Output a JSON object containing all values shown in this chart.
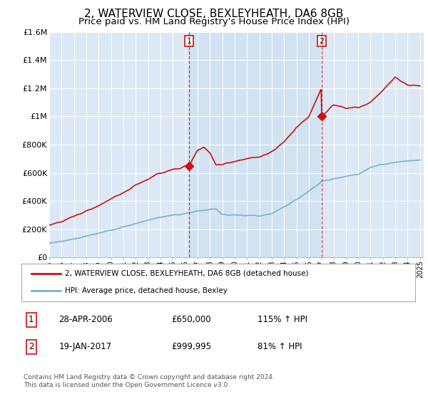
{
  "title": "2, WATERVIEW CLOSE, BEXLEYHEATH, DA6 8GB",
  "subtitle": "Price paid vs. HM Land Registry's House Price Index (HPI)",
  "title_fontsize": 11,
  "subtitle_fontsize": 9.5,
  "background_color": "#ffffff",
  "plot_bg_color": "#dce8f5",
  "plot_bg_color2": "#c8ddf0",
  "grid_color": "#ffffff",
  "ylim": [
    0,
    1600000
  ],
  "yticks": [
    0,
    200000,
    400000,
    600000,
    800000,
    1000000,
    1200000,
    1400000,
    1600000
  ],
  "ytick_labels": [
    "£0",
    "£200K",
    "£400K",
    "£600K",
    "£800K",
    "£1M",
    "£1.2M",
    "£1.4M",
    "£1.6M"
  ],
  "hpi_color": "#7ab0d4",
  "price_color": "#cc1111",
  "sale1_year": 2006.32,
  "sale1_price": 650000,
  "sale2_year": 2017.05,
  "sale2_price": 999995,
  "legend_box_color": "#ffffff",
  "legend_edge_color": "#aaaaaa",
  "footer_text": "Contains HM Land Registry data © Crown copyright and database right 2024.\nThis data is licensed under the Open Government Licence v3.0.",
  "table_row1": [
    "1",
    "28-APR-2006",
    "£650,000",
    "115% ↑ HPI"
  ],
  "table_row2": [
    "2",
    "19-JAN-2017",
    "£999,995",
    "81% ↑ HPI"
  ],
  "hpi_keypoints_x": [
    1995,
    1996,
    1997,
    1998,
    1999,
    2000,
    2001,
    2002,
    2003,
    2004,
    2005,
    2006,
    2006.32,
    2007,
    2008,
    2008.5,
    2009,
    2010,
    2011,
    2012,
    2013,
    2014,
    2015,
    2016,
    2017,
    2017.05,
    2018,
    2019,
    2020,
    2021,
    2022,
    2023,
    2024,
    2025
  ],
  "hpi_keypoints_y": [
    100000,
    115000,
    130000,
    150000,
    170000,
    195000,
    215000,
    240000,
    265000,
    285000,
    300000,
    310000,
    315000,
    330000,
    340000,
    345000,
    305000,
    300000,
    300000,
    295000,
    310000,
    360000,
    410000,
    470000,
    530000,
    540000,
    555000,
    575000,
    590000,
    640000,
    660000,
    675000,
    685000,
    690000
  ],
  "price_keypoints_x": [
    1995,
    1996,
    1997,
    1998,
    1999,
    2000,
    2001,
    2002,
    2003,
    2004,
    2005,
    2006,
    2006.32,
    2007,
    2007.5,
    2008,
    2008.5,
    2009,
    2010,
    2011,
    2012,
    2013,
    2014,
    2015,
    2016,
    2017,
    2017.05,
    2018,
    2019,
    2020,
    2021,
    2022,
    2023,
    2023.5,
    2024,
    2025
  ],
  "price_keypoints_y": [
    230000,
    255000,
    290000,
    330000,
    365000,
    415000,
    455000,
    510000,
    555000,
    600000,
    625000,
    645000,
    650000,
    760000,
    780000,
    740000,
    660000,
    660000,
    680000,
    700000,
    710000,
    750000,
    820000,
    920000,
    1000000,
    1200000,
    999995,
    1080000,
    1060000,
    1060000,
    1100000,
    1190000,
    1280000,
    1250000,
    1220000,
    1220000
  ]
}
